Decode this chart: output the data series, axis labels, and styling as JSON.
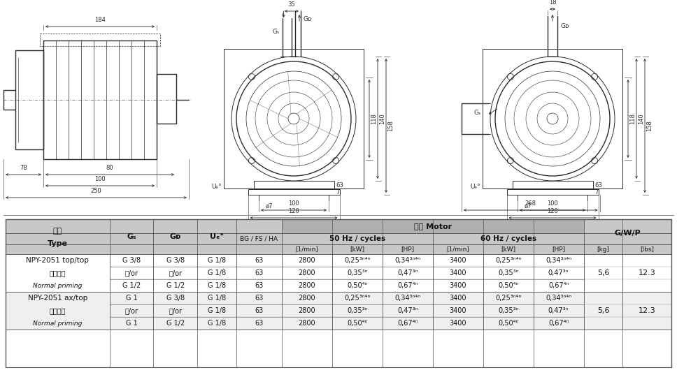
{
  "bg_color": "#ffffff",
  "dc": "#2a2a2a",
  "dim_color": "#2a2a2a",
  "lw_thick": 1.0,
  "lw_mid": 0.7,
  "lw_thin": 0.5,
  "lw_dim": 0.6,
  "fs_dim": 6.0,
  "fs_label": 6.5,
  "table": {
    "header_bg": "#b0b0b0",
    "subheader_bg": "#c8c8c8",
    "white": "#ffffff",
    "light_gray": "#efefef",
    "border": "#555555",
    "motor_header": "馬達 Motor",
    "hz50_header": "50 Hz / cycles",
    "hz60_header": "60 Hz / cycles",
    "gwp_header": "G/W/P",
    "type_header1": "型號",
    "type_header2": "Type",
    "gs_header": "Gₛ",
    "gd_header": "Gᴅ",
    "ue_header": "Uₑ°",
    "bgfsha_header": "BG / FS / HA",
    "units_50": [
      "[1/min]",
      "[kW]",
      "[HP]"
    ],
    "units_60": [
      "[1/min]",
      "[kW]",
      "[HP]"
    ],
    "units_gwp": [
      "[kg]",
      "[lbs]"
    ],
    "group1": {
      "type1": "NPY-2051 top/top",
      "type2": "一級吸入",
      "type3": "Normal priming",
      "gs": [
        "G 3/8",
        "或/or",
        "G 1/2"
      ],
      "gd": [
        "G 3/8",
        "或/or",
        "G 1/2"
      ],
      "ue": [
        "G 1/8",
        "G 1/8",
        "G 1/8"
      ],
      "bg": [
        "63",
        "63",
        "63"
      ],
      "rpm50": [
        "2800",
        "2800",
        "2800"
      ],
      "kw50": [
        "0,25³ⁿ⁴ⁿ",
        "0,35³ⁿ",
        "0,50⁴ⁿ"
      ],
      "hp50": [
        "0,34³ⁿ⁴ⁿ",
        "0,47³ⁿ",
        "0,67⁴ⁿ"
      ],
      "rpm60": [
        "3400",
        "3400",
        "3400"
      ],
      "kw60": [
        "0,25³ⁿ⁴ⁿ",
        "0,35³ⁿ",
        "0,50⁴ⁿ"
      ],
      "hp60": [
        "0,34³ⁿ⁴ⁿ",
        "0,47³ⁿ",
        "0,67⁴ⁿ"
      ],
      "kg": "5,6",
      "lbs": "12.3"
    },
    "group2": {
      "type1": "NPY-2051 ax/top",
      "type2": "一級吸入",
      "type3": "Normal priming",
      "gs": [
        "G 1",
        "或/or",
        "G 1"
      ],
      "gd": [
        "G 3/8",
        "或/or",
        "G 1/2"
      ],
      "ue": [
        "G 1/8",
        "G 1/8",
        "G 1/8"
      ],
      "bg": [
        "63",
        "63",
        "63"
      ],
      "rpm50": [
        "2800",
        "2800",
        "2800"
      ],
      "kw50": [
        "0,25³ⁿ⁴ⁿ",
        "0,35³ⁿ",
        "0,50⁴ⁿ"
      ],
      "hp50": [
        "0,34³ⁿ⁴ⁿ",
        "0,47³ⁿ",
        "0,67⁴ⁿ"
      ],
      "rpm60": [
        "3400",
        "3400",
        "3400"
      ],
      "kw60": [
        "0,25³ⁿ⁴ⁿ",
        "0,35³ⁿ",
        "0,50⁴ⁿ"
      ],
      "hp60": [
        "0,34³ⁿ⁴ⁿ",
        "0,47³ⁿ",
        "0,67⁴ⁿ"
      ],
      "kg": "5,6",
      "lbs": "12.3"
    }
  }
}
